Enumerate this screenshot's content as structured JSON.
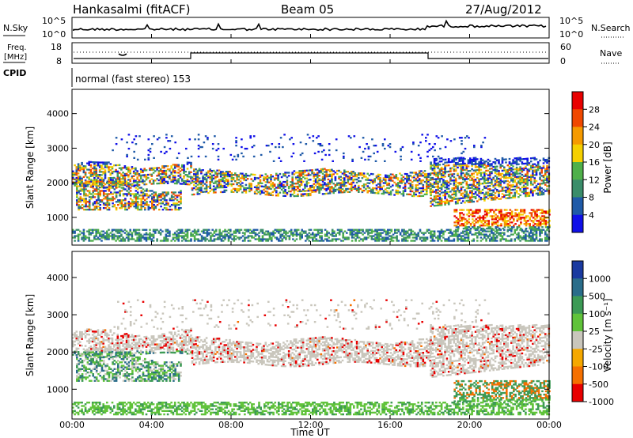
{
  "header": {
    "station": "Hankasalmi (fitACF)",
    "beam": "Beam 05",
    "date": "27/Aug/2012"
  },
  "top_panels": {
    "nsky_label": "N.Sky",
    "nsky_top": "10^5",
    "nsky_bottom": "10^0",
    "nsearch_label": "N.Search",
    "nsearch_top": "10^5",
    "nsearch_bottom": "10^0",
    "freq_label": "Freq.",
    "freq_unit": "[MHz]",
    "freq_top": "18",
    "freq_bottom": "8",
    "nave_label": "Nave",
    "nave_top": "60",
    "nave_bottom": "0",
    "cpid_label": "CPID",
    "cpid_text": "normal (fast stereo) 153"
  },
  "chart_data": [
    {
      "type": "heatmap",
      "ylabel": "Slant Range [km]",
      "y_ticks": [
        "1000",
        "2000",
        "3000",
        "4000"
      ],
      "ylim": [
        200,
        4700
      ],
      "xlim": [
        0,
        24
      ],
      "colorbar_label": "Power [dB]",
      "colorbar_ticks": [
        "4",
        "8",
        "12",
        "16",
        "20",
        "24",
        "28"
      ],
      "colors": [
        "#1010e8",
        "#1f5aa8",
        "#3a8d6a",
        "#4fb04a",
        "#f5d000",
        "#f59a00",
        "#f04800",
        "#e80000"
      ]
    },
    {
      "type": "heatmap",
      "ylabel": "Slant Range [km]",
      "y_ticks": [
        "1000",
        "2000",
        "3000",
        "4000"
      ],
      "ylim": [
        200,
        4700
      ],
      "xlim": [
        0,
        24
      ],
      "xlabel": "Time UT",
      "x_ticks": [
        "00:00",
        "04:00",
        "08:00",
        "12:00",
        "16:00",
        "20:00",
        "00:00"
      ],
      "colorbar_label": "Velocity [m s⁻¹]",
      "colorbar_ticks": [
        "1000",
        "500",
        "100",
        "25",
        "-25",
        "-100",
        "-500",
        "-1000"
      ],
      "colors": [
        "#1a3aa0",
        "#2a6d8a",
        "#3c9a55",
        "#60c33a",
        "#c9c6bc",
        "#f5a800",
        "#f57000",
        "#e80000"
      ]
    }
  ]
}
